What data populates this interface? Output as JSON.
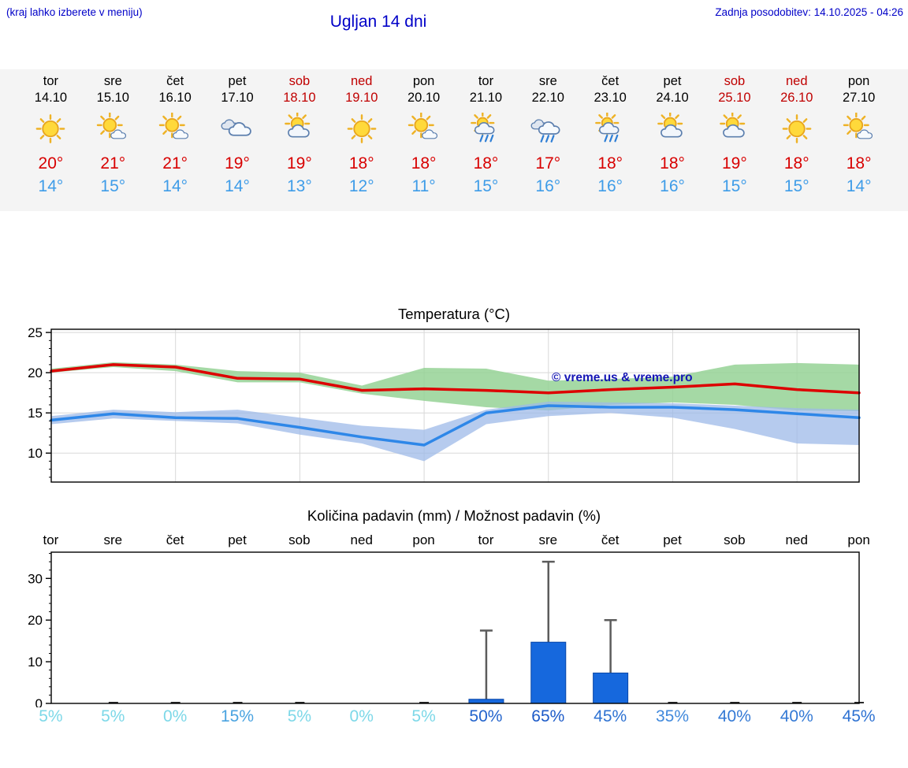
{
  "header": {
    "hint": "(kraj lahko izberete v meniju)",
    "title": "Ugljan 14 dni",
    "last_update": "Zadnja posodobitev: 14.10.2025 - 04:26"
  },
  "colors": {
    "header_blue": "#0000c8",
    "weekend_red": "#c00000",
    "high_temp_red": "#d80000",
    "low_temp_blue": "#3e9ce8",
    "strip_background": "#f4f4f4",
    "watermark_blue": "#1515b5"
  },
  "forecast_days": [
    {
      "day": "tor",
      "date": "14.10",
      "weekend": false,
      "icon": "sunny",
      "high": "20°",
      "low": "14°"
    },
    {
      "day": "sre",
      "date": "15.10",
      "weekend": false,
      "icon": "mostly-sunny",
      "high": "21°",
      "low": "15°"
    },
    {
      "day": "čet",
      "date": "16.10",
      "weekend": false,
      "icon": "mostly-sunny",
      "high": "21°",
      "low": "14°"
    },
    {
      "day": "pet",
      "date": "17.10",
      "weekend": false,
      "icon": "cloudy",
      "high": "19°",
      "low": "14°"
    },
    {
      "day": "sob",
      "date": "18.10",
      "weekend": true,
      "icon": "partly-cloudy",
      "high": "19°",
      "low": "13°"
    },
    {
      "day": "ned",
      "date": "19.10",
      "weekend": true,
      "icon": "sunny",
      "high": "18°",
      "low": "12°"
    },
    {
      "day": "pon",
      "date": "20.10",
      "weekend": false,
      "icon": "mostly-sunny",
      "high": "18°",
      "low": "11°"
    },
    {
      "day": "tor",
      "date": "21.10",
      "weekend": false,
      "icon": "sun-showers",
      "high": "18°",
      "low": "15°"
    },
    {
      "day": "sre",
      "date": "22.10",
      "weekend": false,
      "icon": "rain",
      "high": "17°",
      "low": "16°"
    },
    {
      "day": "čet",
      "date": "23.10",
      "weekend": false,
      "icon": "sun-showers",
      "high": "18°",
      "low": "16°"
    },
    {
      "day": "pet",
      "date": "24.10",
      "weekend": false,
      "icon": "partly-cloudy",
      "high": "18°",
      "low": "16°"
    },
    {
      "day": "sob",
      "date": "25.10",
      "weekend": true,
      "icon": "partly-cloudy",
      "high": "19°",
      "low": "15°"
    },
    {
      "day": "ned",
      "date": "26.10",
      "weekend": true,
      "icon": "sunny",
      "high": "18°",
      "low": "15°"
    },
    {
      "day": "pon",
      "date": "27.10",
      "weekend": false,
      "icon": "mostly-sunny",
      "high": "18°",
      "low": "14°"
    }
  ],
  "chart_data": [
    {
      "type": "line",
      "title": "Temperatura (°C)",
      "x": [
        "tor 14.10",
        "sre 15.10",
        "čet 16.10",
        "pet 17.10",
        "sob 18.10",
        "ned 19.10",
        "pon 20.10",
        "tor 21.10",
        "sre 22.10",
        "čet 23.10",
        "pet 24.10",
        "sob 25.10",
        "ned 26.10",
        "pon 27.10"
      ],
      "ylim": [
        6.4,
        25.4
      ],
      "yticks": [
        10,
        15,
        20,
        25
      ],
      "grid": true,
      "watermark": "© vreme.us & vreme.pro",
      "series": [
        {
          "name": "max-temperature",
          "color": "#dd0000",
          "values": [
            20.2,
            21.0,
            20.7,
            19.3,
            19.2,
            17.8,
            18.0,
            17.8,
            17.5,
            17.9,
            18.2,
            18.6,
            17.9,
            17.5
          ]
        },
        {
          "name": "min-temperature",
          "color": "#2e87e8",
          "values": [
            14.1,
            14.9,
            14.4,
            14.3,
            13.2,
            12.0,
            11.0,
            15.0,
            15.9,
            15.7,
            15.7,
            15.4,
            14.9,
            14.4
          ]
        }
      ],
      "bands": [
        {
          "name": "max-temperature-range",
          "color": "#95d295",
          "opacity": 0.85,
          "upper": [
            20.5,
            21.3,
            21.0,
            20.2,
            20.0,
            18.4,
            20.6,
            20.5,
            19.0,
            19.2,
            19.5,
            21.0,
            21.2,
            21.0
          ],
          "lower": [
            20.0,
            20.7,
            20.2,
            18.8,
            18.8,
            17.4,
            16.5,
            15.7,
            15.3,
            16.0,
            16.3,
            16.0,
            15.3,
            15.2
          ]
        },
        {
          "name": "min-temperature-range",
          "color": "#9db9e8",
          "opacity": 0.75,
          "upper": [
            14.6,
            15.4,
            15.1,
            15.4,
            14.4,
            13.4,
            12.9,
            15.4,
            16.4,
            16.3,
            16.2,
            15.9,
            15.6,
            15.4
          ],
          "lower": [
            13.6,
            14.3,
            14.0,
            13.7,
            12.3,
            11.2,
            9.0,
            13.6,
            14.6,
            15.0,
            14.4,
            13.0,
            11.2,
            11.0
          ]
        }
      ]
    },
    {
      "type": "bar",
      "title": "Količina padavin (mm) / Možnost padavin (%)",
      "categories": [
        "tor",
        "sre",
        "čet",
        "pet",
        "sob",
        "ned",
        "pon",
        "tor",
        "sre",
        "čet",
        "pet",
        "sob",
        "ned",
        "pon"
      ],
      "values": [
        0,
        0.1,
        0.1,
        0.2,
        0.1,
        0,
        0.1,
        1.0,
        14.7,
        7.3,
        0.1,
        0.2,
        0.1,
        0.1
      ],
      "whisker_max": [
        0,
        0,
        0,
        0,
        0,
        0,
        0,
        17.5,
        34,
        20,
        0,
        0,
        0,
        0
      ],
      "probabilities": [
        "5%",
        "5%",
        "0%",
        "15%",
        "5%",
        "0%",
        "5%",
        "50%",
        "65%",
        "45%",
        "35%",
        "40%",
        "40%",
        "45%"
      ],
      "prob_colors": [
        "#7dd8e8",
        "#7dd8e8",
        "#7dd8e8",
        "#4aa3e0",
        "#7dd8e8",
        "#7dd8e8",
        "#7dd8e8",
        "#2263cc",
        "#1c5ac8",
        "#2e72d2",
        "#4189dc",
        "#3379d5",
        "#3379d5",
        "#2e72d2"
      ],
      "bar_color": "#1668dd",
      "ylim": [
        0,
        36.3
      ],
      "yticks": [
        0,
        10,
        20,
        30
      ]
    }
  ]
}
